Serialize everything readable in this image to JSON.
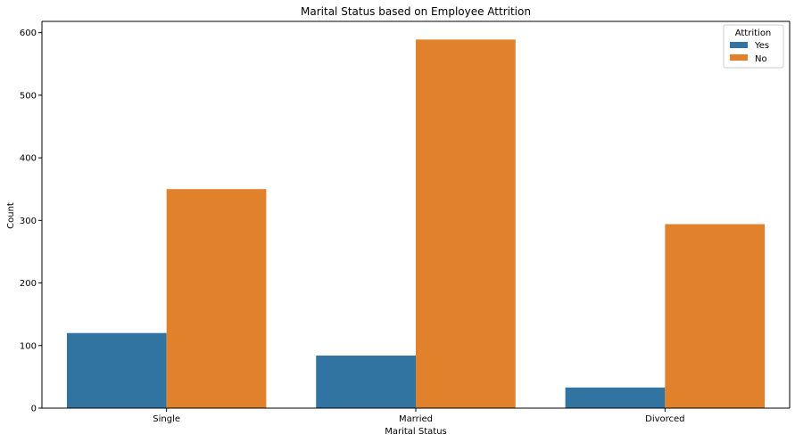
{
  "chart_data": {
    "type": "bar",
    "title": "Marital Status based on Employee Attrition",
    "xlabel": "Marital Status",
    "ylabel": "Count",
    "categories": [
      "Single",
      "Married",
      "Divorced"
    ],
    "series": [
      {
        "name": "Yes",
        "values": [
          120,
          84,
          33
        ],
        "color": "#3274a1"
      },
      {
        "name": "No",
        "values": [
          350,
          589,
          294
        ],
        "color": "#e1812c"
      }
    ],
    "ylim": [
      0,
      618
    ],
    "yticks": [
      0,
      100,
      200,
      300,
      400,
      500,
      600
    ],
    "legend": {
      "title": "Attrition",
      "position": "top-right"
    },
    "grid": false
  }
}
